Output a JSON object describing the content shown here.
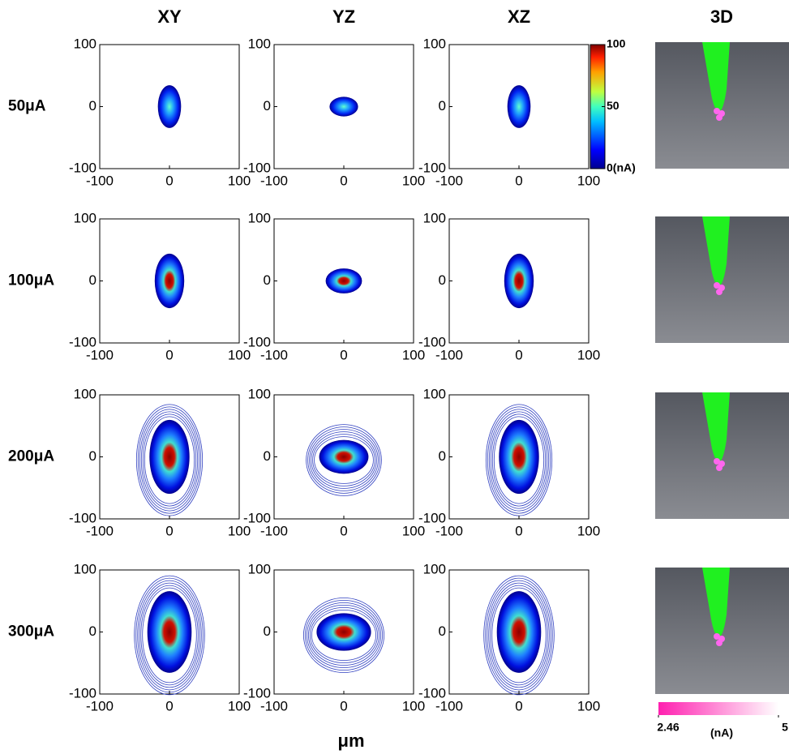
{
  "chart_data": {
    "type": "contour-grid",
    "columns": [
      "XY",
      "YZ",
      "XZ"
    ],
    "column_3d": "3D",
    "rows": [
      "50μA",
      "100μA",
      "200μA",
      "300μA"
    ],
    "xlim": [
      -100,
      100
    ],
    "ylim": [
      -100,
      100
    ],
    "xticks": [
      -100,
      0,
      100
    ],
    "yticks": [
      -100,
      0,
      100
    ],
    "xlabel": "μm",
    "colorbar": {
      "lim": [
        0,
        100
      ],
      "ticks": [
        {
          "value": 0,
          "label": "0(nA)"
        },
        50,
        100
      ]
    },
    "colorbar_3d": {
      "lim": [
        2.46,
        5
      ],
      "ticks": [
        2.46,
        5
      ],
      "unit": "(nA)"
    }
  }
}
